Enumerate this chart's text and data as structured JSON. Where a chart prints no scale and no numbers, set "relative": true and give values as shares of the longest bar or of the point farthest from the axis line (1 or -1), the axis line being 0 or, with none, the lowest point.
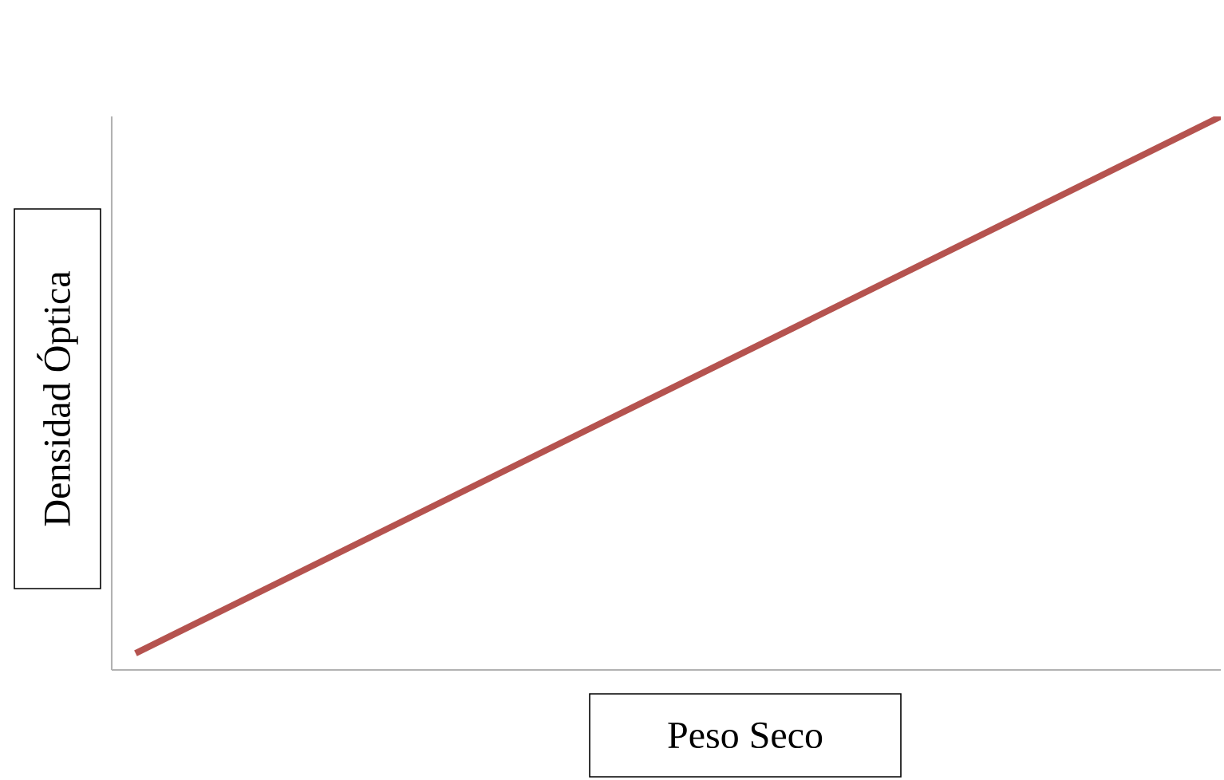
{
  "chart_data": {
    "type": "line",
    "relative": true,
    "xlabel": "Peso Seco",
    "ylabel": "Densidad Óptica",
    "categories": [
      null,
      null
    ],
    "series": [
      {
        "color": "#b5534f",
        "values": [
          0.03,
          1
        ]
      }
    ]
  }
}
